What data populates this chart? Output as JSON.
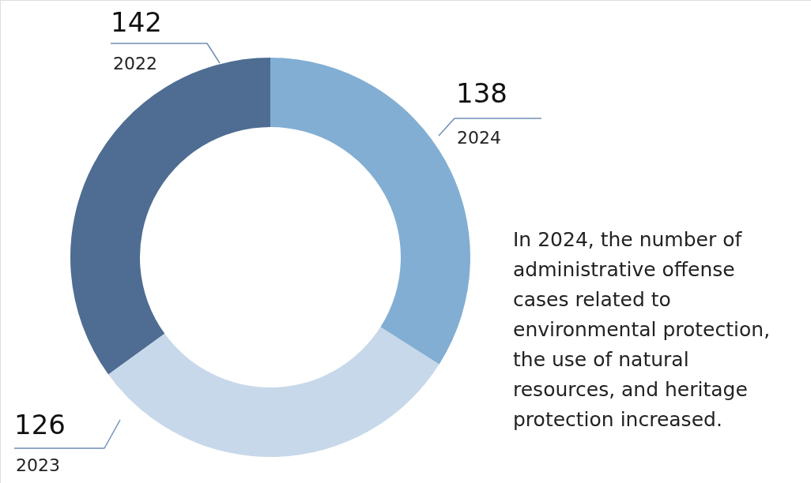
{
  "chart_data": {
    "type": "donut",
    "categories": [
      "2022",
      "2023",
      "2024"
    ],
    "values": [
      142,
      126,
      138
    ],
    "colors": [
      "#4f6d92",
      "#c7d8ea",
      "#82aed3"
    ],
    "data_labels": true,
    "legend": false,
    "annotations": [
      "In 2024, the number of administrative offense cases related to environmental protection, the use of natural resources, and heritage protection increased."
    ]
  }
}
